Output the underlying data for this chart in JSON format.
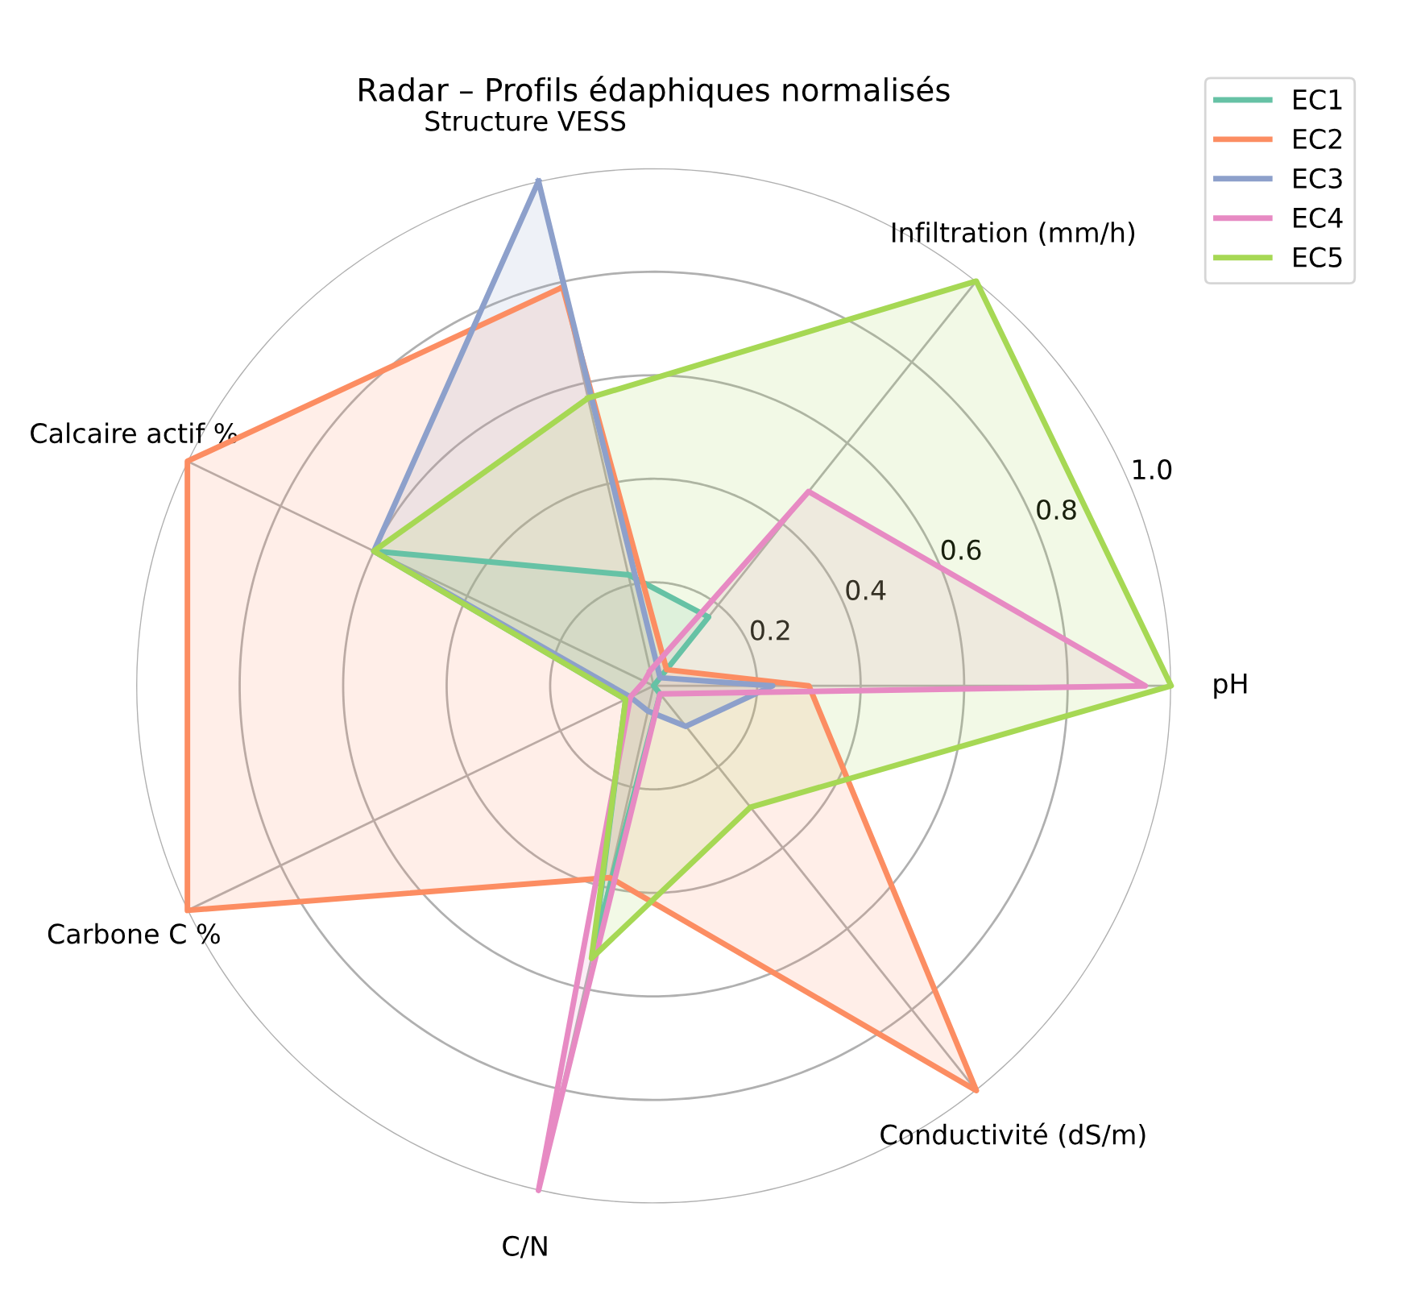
{
  "chart_data": {
    "type": "radar",
    "title": "Radar – Profils édaphiques normalisés",
    "categories": [
      "Structure VESS",
      "Infiltration (mm/h)",
      "pH",
      "Conductivité (dS/m)",
      "C/N",
      "Carbone C %",
      "Calcaire actif %"
    ],
    "series": [
      {
        "name": "EC1",
        "color": "#66c2a5",
        "values": [
          0.22,
          0.17,
          0.0,
          0.02,
          0.52,
          0.06,
          0.6
        ]
      },
      {
        "name": "EC2",
        "color": "#fc8d62",
        "values": [
          0.79,
          0.04,
          0.3,
          1.0,
          0.38,
          1.0,
          1.0
        ]
      },
      {
        "name": "EC3",
        "color": "#8da0cb",
        "values": [
          1.0,
          0.02,
          0.23,
          0.1,
          0.05,
          0.05,
          0.6
        ]
      },
      {
        "name": "EC4",
        "color": "#e78ac3",
        "values": [
          0.03,
          0.48,
          0.95,
          0.02,
          1.0,
          0.05,
          0.02
        ]
      },
      {
        "name": "EC5",
        "color": "#a6d854",
        "values": [
          0.57,
          1.0,
          1.0,
          0.3,
          0.54,
          0.06,
          0.6
        ]
      }
    ],
    "ylim": [
      0,
      1
    ],
    "yticks": [
      0.2,
      0.4,
      0.6,
      0.8,
      {
        "value": 1,
        "label": "1.0"
      }
    ],
    "grid": true,
    "legend": "top right"
  }
}
